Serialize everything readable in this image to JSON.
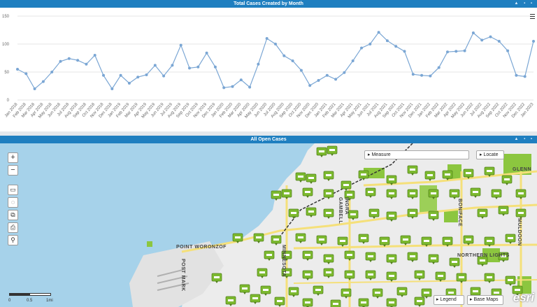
{
  "chart_panel": {
    "title": "Total Cases Created by Month",
    "menu_icon": "hamburger-icon"
  },
  "map_panel": {
    "title": "All Open Cases"
  },
  "chart_data": {
    "type": "line",
    "title": "",
    "xlabel": "",
    "ylabel": "",
    "ylim": [
      0,
      150
    ],
    "yticks": [
      0,
      50,
      100,
      150
    ],
    "grid": true,
    "categories": [
      "Jan 2018",
      "Feb 2018",
      "Mar 2018",
      "Apr 2018",
      "May 2018",
      "Jun 2018",
      "Jul 2018",
      "Aug 2018",
      "Sep 2018",
      "Oct 2018",
      "Nov 2018",
      "Dec 2018",
      "Jan 2019",
      "Feb 2019",
      "Mar 2019",
      "Apr 2019",
      "May 2019",
      "Jun 2019",
      "Jul 2019",
      "Aug 2019",
      "Sep 2019",
      "Oct 2019",
      "Nov 2019",
      "Dec 2019",
      "Jan 2020",
      "Feb 2020",
      "Mar 2020",
      "Apr 2020",
      "May 2020",
      "Jun 2020",
      "Jul 2020",
      "Aug 2020",
      "Sep 2020",
      "Oct 2020",
      "Nov 2020",
      "Dec 2020",
      "Jan 2021",
      "Feb 2021",
      "Mar 2021",
      "Apr 2021",
      "May 2021",
      "Jun 2021",
      "Jul 2021",
      "Aug 2021",
      "Sep 2021",
      "Oct 2021",
      "Nov 2021",
      "Dec 2021",
      "Jan 2022",
      "Feb 2022",
      "Mar 2022",
      "Apr 2022",
      "May 2022",
      "Jun 2022",
      "Jul 2022",
      "Aug 2022",
      "Sep 2022",
      "Oct 2022",
      "Nov 2022",
      "Dec 2022",
      "Jan 2023"
    ],
    "series": [
      {
        "values": [
          55,
          47,
          20,
          33,
          50,
          69,
          74,
          71,
          64,
          80,
          44,
          20,
          44,
          30,
          41,
          45,
          62,
          43,
          62,
          98,
          57,
          59,
          84,
          59,
          22,
          24,
          36,
          23,
          64,
          110,
          100,
          79,
          70,
          53,
          26,
          35,
          44,
          37,
          49,
          70,
          93,
          100,
          121,
          106,
          96,
          87,
          46,
          44,
          43,
          58,
          86,
          87,
          88,
          120,
          107,
          113,
          105,
          88,
          44,
          42,
          105
        ]
      }
    ],
    "color": "#7aa6d4"
  },
  "map": {
    "controls": {
      "zoom_in": "+",
      "zoom_out": "−"
    },
    "tools": [
      "rectangle-select-icon",
      "lasso-icon",
      "layers-icon",
      "print-icon",
      "search-icon"
    ],
    "measure_label": "Measure",
    "locate_label": "Locate",
    "legend_label": "Legend",
    "basemaps_label": "Base Maps",
    "attribution": "esri",
    "scale": {
      "zero": "0",
      "half": "0.5",
      "unit": "1mi"
    },
    "streets": {
      "point_woronzof": "POINT WORONZOF",
      "minnesota": "MINNESOTA",
      "gambell": "GAMBELL",
      "ingra": "INGRA",
      "boniface": "BONIFACE",
      "muldoon": "MULDOON",
      "northern_lights": "NORTHERN LIGHTS",
      "glenn": "GLENN",
      "postmark": "POST MARK"
    }
  }
}
